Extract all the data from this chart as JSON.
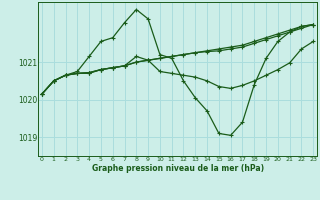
{
  "title": "Graphe pression niveau de la mer (hPa)",
  "bg_color": "#cceee8",
  "grid_color": "#aadddd",
  "line_color": "#1a5c1a",
  "x_ticks": [
    0,
    1,
    2,
    3,
    4,
    5,
    6,
    7,
    8,
    9,
    10,
    11,
    12,
    13,
    14,
    15,
    16,
    17,
    18,
    19,
    20,
    21,
    22,
    23
  ],
  "y_ticks": [
    1019,
    1020,
    1021
  ],
  "ylim": [
    1018.5,
    1022.6
  ],
  "xlim": [
    -0.3,
    23.3
  ],
  "series": [
    [
      1020.15,
      1020.5,
      1020.65,
      1020.7,
      1020.7,
      1020.8,
      1020.85,
      1020.9,
      1021.0,
      1021.05,
      1021.1,
      1021.15,
      1021.2,
      1021.25,
      1021.3,
      1021.35,
      1021.4,
      1021.45,
      1021.55,
      1021.65,
      1021.75,
      1021.85,
      1021.95,
      1022.0
    ],
    [
      1020.15,
      1020.5,
      1020.65,
      1020.7,
      1020.72,
      1020.8,
      1020.85,
      1020.9,
      1021.0,
      1021.05,
      1021.1,
      1021.15,
      1021.2,
      1021.25,
      1021.28,
      1021.3,
      1021.35,
      1021.4,
      1021.5,
      1021.6,
      1021.7,
      1021.8,
      1021.95,
      1022.0
    ],
    [
      1020.15,
      1020.5,
      1020.65,
      1020.7,
      1020.72,
      1020.8,
      1020.85,
      1020.9,
      1021.15,
      1021.05,
      1020.75,
      1020.7,
      1020.65,
      1020.6,
      1020.5,
      1020.35,
      1020.3,
      1020.38,
      1020.5,
      1020.65,
      1020.8,
      1020.98,
      1021.35,
      1021.55
    ],
    [
      1020.15,
      1020.5,
      1020.65,
      1020.75,
      1021.15,
      1021.55,
      1021.65,
      1022.05,
      1022.4,
      1022.15,
      1021.2,
      1021.1,
      1020.5,
      1020.05,
      1019.7,
      1019.1,
      1019.05,
      1019.4,
      1020.4,
      1021.1,
      1021.55,
      1021.8,
      1021.9,
      1022.0
    ]
  ]
}
